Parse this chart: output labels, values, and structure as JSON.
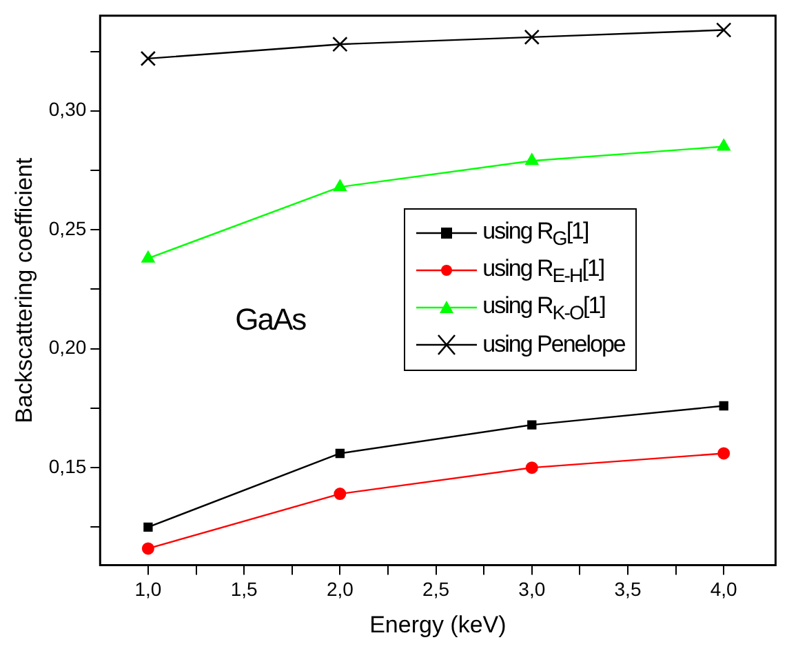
{
  "chart_data": {
    "type": "line",
    "xlabel": "Energy (keV)",
    "ylabel": "Backscattering coefficient",
    "x": [
      1,
      2,
      3,
      4
    ],
    "series": [
      {
        "name": "using R$_{G}$[1]",
        "color": "#000000",
        "marker": "square",
        "values": [
          0.125,
          0.156,
          0.168,
          0.176
        ]
      },
      {
        "name": "using R$_{E-H}$[1]",
        "color": "#ff0000",
        "marker": "circle",
        "values": [
          0.116,
          0.139,
          0.15,
          0.156
        ]
      },
      {
        "name": "using R$_{K-O}$[1]",
        "color": "#00ff00",
        "marker": "triangle",
        "values": [
          0.238,
          0.268,
          0.279,
          0.285
        ]
      },
      {
        "name": "using Penelope",
        "color": "#000000",
        "marker": "cross",
        "values": [
          0.322,
          0.328,
          0.331,
          0.334
        ]
      }
    ],
    "xlim": [
      0.75,
      4.27
    ],
    "xticks": [
      {
        "value": 1,
        "label": "1,0"
      },
      {
        "value": 1.25,
        "label": null
      },
      {
        "value": 1.5,
        "label": "1,5"
      },
      {
        "value": 1.75,
        "label": null
      },
      {
        "value": 2,
        "label": "2,0"
      },
      {
        "value": 2.25,
        "label": null
      },
      {
        "value": 2.5,
        "label": "2,5"
      },
      {
        "value": 2.75,
        "label": null
      },
      {
        "value": 3,
        "label": "3,0"
      },
      {
        "value": 3.25,
        "label": null
      },
      {
        "value": 3.5,
        "label": "3,5"
      },
      {
        "value": 3.75,
        "label": null
      },
      {
        "value": 4,
        "label": "4,0"
      }
    ],
    "ylim": [
      0.109,
      0.34
    ],
    "yticks": [
      {
        "value": 0.125,
        "label": null
      },
      {
        "value": 0.15,
        "label": "0,15"
      },
      {
        "value": 0.175,
        "label": null
      },
      {
        "value": 0.2,
        "label": "0,20"
      },
      {
        "value": 0.225,
        "label": null
      },
      {
        "value": 0.25,
        "label": "0,25"
      },
      {
        "value": 0.275,
        "label": null
      },
      {
        "value": 0.3,
        "label": "0,30"
      },
      {
        "value": 0.325,
        "label": null
      }
    ],
    "annotations": [
      "GaAs"
    ],
    "grid": false,
    "legend": "right",
    "line_style": "solid"
  }
}
